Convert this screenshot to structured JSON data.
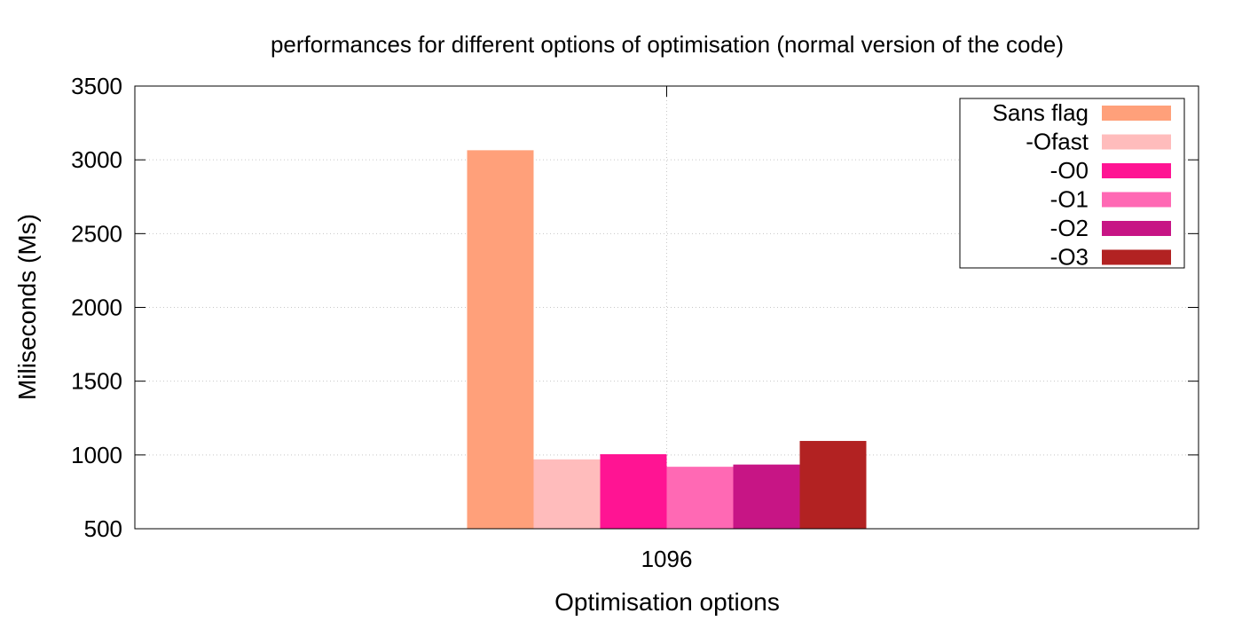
{
  "chart_data": {
    "type": "bar",
    "title": "performances for different options of optimisation (normal version of the code)",
    "xlabel": "Optimisation options",
    "ylabel": "Miliseconds (Ms)",
    "categories": [
      "1096"
    ],
    "ylim": [
      500,
      3500
    ],
    "yticks": [
      500,
      1000,
      1500,
      2000,
      2500,
      3000,
      3500
    ],
    "grid": true,
    "legend_position": "top-right",
    "series": [
      {
        "name": "Sans flag",
        "values": [
          3065
        ],
        "color": "#ffa07a"
      },
      {
        "name": "-Ofast",
        "values": [
          970
        ],
        "color": "#ffbcbc"
      },
      {
        "name": "-O0",
        "values": [
          1005
        ],
        "color": "#ff1493"
      },
      {
        "name": "-O1",
        "values": [
          920
        ],
        "color": "#ff69b4"
      },
      {
        "name": "-O2",
        "values": [
          935
        ],
        "color": "#c71585"
      },
      {
        "name": "-O3",
        "values": [
          1095
        ],
        "color": "#b22222"
      }
    ]
  }
}
